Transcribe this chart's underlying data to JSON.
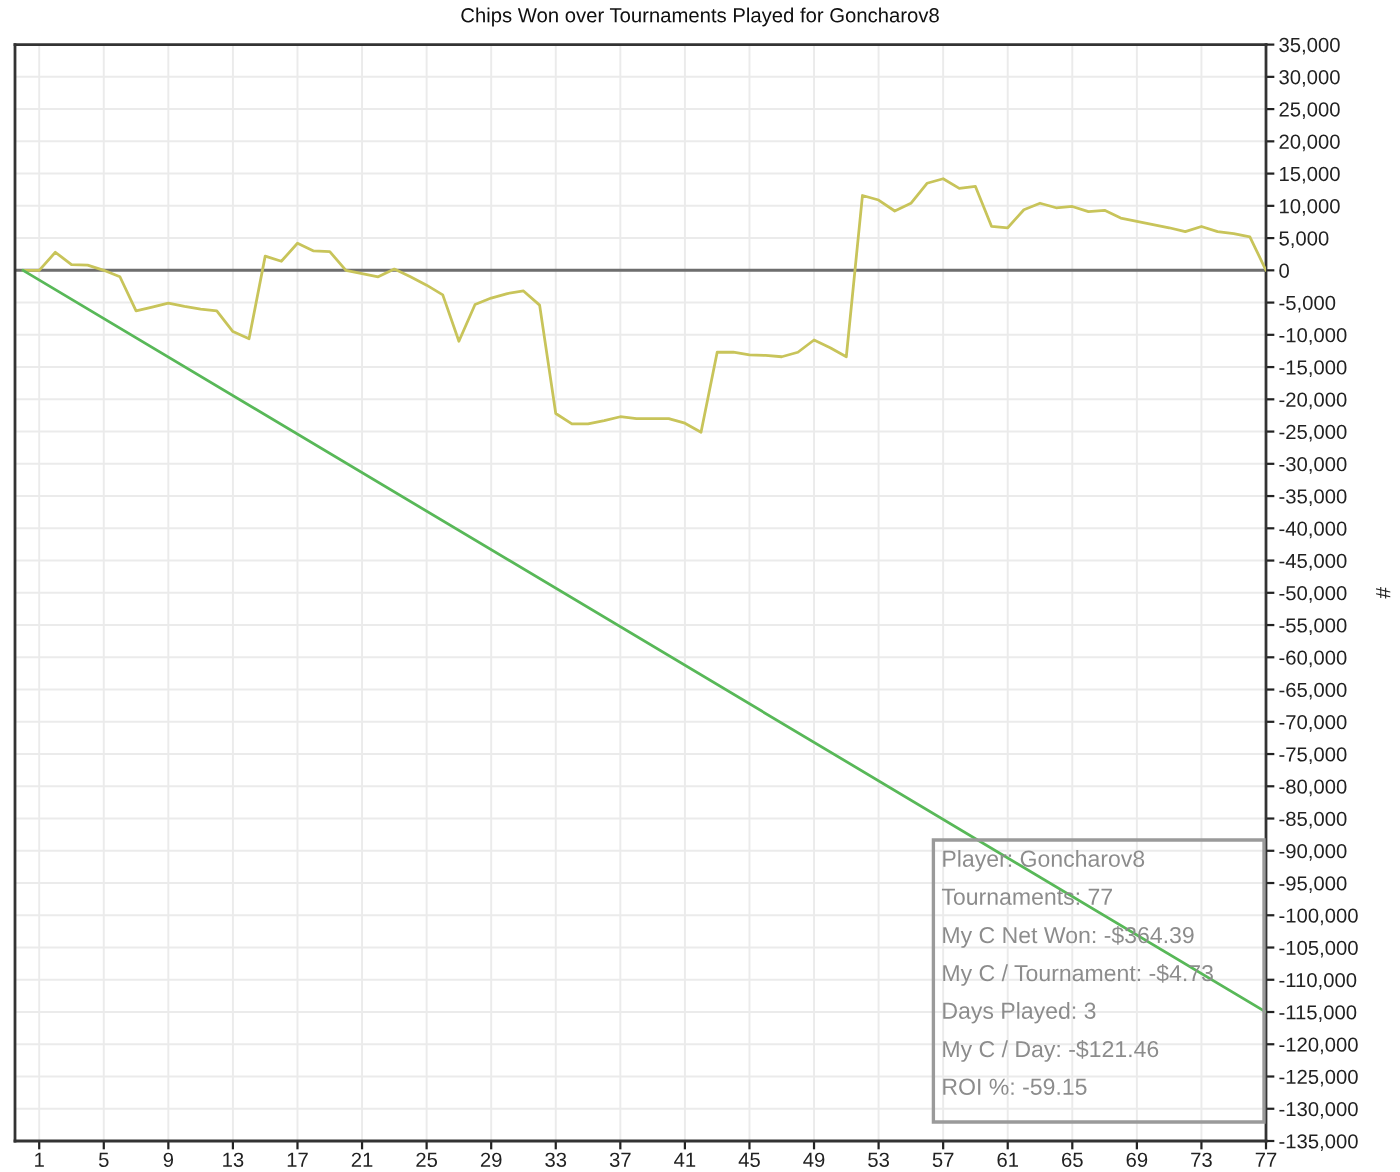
{
  "chart_data": {
    "type": "line",
    "title": "Chips Won over Tournaments Played for Goncharov8",
    "ylabel": "#",
    "x": [
      0,
      1,
      2,
      3,
      4,
      5,
      6,
      7,
      8,
      9,
      10,
      11,
      12,
      13,
      14,
      15,
      16,
      17,
      18,
      19,
      20,
      21,
      22,
      23,
      24,
      25,
      26,
      27,
      28,
      29,
      30,
      31,
      32,
      33,
      34,
      35,
      36,
      37,
      38,
      39,
      40,
      41,
      42,
      43,
      44,
      45,
      46,
      47,
      48,
      49,
      50,
      51,
      52,
      53,
      54,
      55,
      56,
      57,
      58,
      59,
      60,
      61,
      62,
      63,
      64,
      65,
      66,
      67,
      68,
      69,
      70,
      71,
      72,
      73,
      74,
      75,
      76,
      77
    ],
    "series": [
      {
        "color": "#c8c45a",
        "values": [
          0,
          0,
          2800,
          900,
          800,
          0,
          -1000,
          -6300,
          -5700,
          -5100,
          -5600,
          -6000,
          -6300,
          -9500,
          -10600,
          2200,
          1400,
          4200,
          3000,
          2900,
          0,
          -500,
          -1000,
          200,
          -1000,
          -2300,
          -3800,
          -11000,
          -5300,
          -4300,
          -3600,
          -3200,
          -5400,
          -22200,
          -23800,
          -23800,
          -23300,
          -22700,
          -23000,
          -23000,
          -23000,
          -23700,
          -25100,
          -12700,
          -12700,
          -13100,
          -13200,
          -13400,
          -12700,
          -10800,
          -12000,
          -13400,
          11600,
          10900,
          9200,
          10400,
          13500,
          14200,
          12700,
          13000,
          6800,
          6600,
          9400,
          10400,
          9700,
          9900,
          9100,
          9300,
          8100,
          7600,
          7100,
          6600,
          6000,
          6800,
          6000,
          5700,
          5200,
          0
        ]
      },
      {
        "type": "line",
        "color": "#58b858",
        "x": [
          0,
          77
        ],
        "values": [
          0,
          -115000
        ]
      }
    ],
    "xlim": [
      -0.5,
      77
    ],
    "xticks": [
      1,
      5,
      9,
      13,
      17,
      21,
      25,
      29,
      33,
      37,
      41,
      45,
      49,
      53,
      57,
      61,
      65,
      69,
      73,
      77
    ],
    "ylim": [
      -135000,
      35000
    ],
    "yticks": [
      {
        "value": -135000,
        "label": "-135,000"
      },
      {
        "value": -130000,
        "label": "-130,000"
      },
      {
        "value": -125000,
        "label": "-125,000"
      },
      {
        "value": -120000,
        "label": "-120,000"
      },
      {
        "value": -115000,
        "label": "-115,000"
      },
      {
        "value": -110000,
        "label": "-110,000"
      },
      {
        "value": -105000,
        "label": "-105,000"
      },
      {
        "value": -100000,
        "label": "-100,000"
      },
      {
        "value": -95000,
        "label": "-95,000"
      },
      {
        "value": -90000,
        "label": "-90,000"
      },
      {
        "value": -85000,
        "label": "-85,000"
      },
      {
        "value": -80000,
        "label": "-80,000"
      },
      {
        "value": -75000,
        "label": "-75,000"
      },
      {
        "value": -70000,
        "label": "-70,000"
      },
      {
        "value": -65000,
        "label": "-65,000"
      },
      {
        "value": -60000,
        "label": "-60,000"
      },
      {
        "value": -55000,
        "label": "-55,000"
      },
      {
        "value": -50000,
        "label": "-50,000"
      },
      {
        "value": -45000,
        "label": "-45,000"
      },
      {
        "value": -40000,
        "label": "-40,000"
      },
      {
        "value": -35000,
        "label": "-35,000"
      },
      {
        "value": -30000,
        "label": "-30,000"
      },
      {
        "value": -25000,
        "label": "-25,000"
      },
      {
        "value": -20000,
        "label": "-20,000"
      },
      {
        "value": -15000,
        "label": "-15,000"
      },
      {
        "value": -10000,
        "label": "-10,000"
      },
      {
        "value": -5000,
        "label": "-5,000"
      },
      0,
      {
        "value": 5000,
        "label": "5,000"
      },
      {
        "value": 10000,
        "label": "10,000"
      },
      {
        "value": 15000,
        "label": "15,000"
      },
      {
        "value": 20000,
        "label": "20,000"
      },
      {
        "value": 25000,
        "label": "25,000"
      },
      {
        "value": 30000,
        "label": "30,000"
      },
      {
        "value": 35000,
        "label": "35,000"
      }
    ],
    "ref_lines": [
      {
        "axis": "y",
        "value": 0,
        "color": "#6e6e6e"
      }
    ],
    "grid": true,
    "annotations": [
      "Player: Goncharov8",
      "Tournaments: 77",
      "My C Net Won: -$364.39",
      "My C / Tournament: -$4.73",
      "Days Played: 3",
      "My C / Day: -$121.46",
      "ROI %: -59.15"
    ]
  }
}
